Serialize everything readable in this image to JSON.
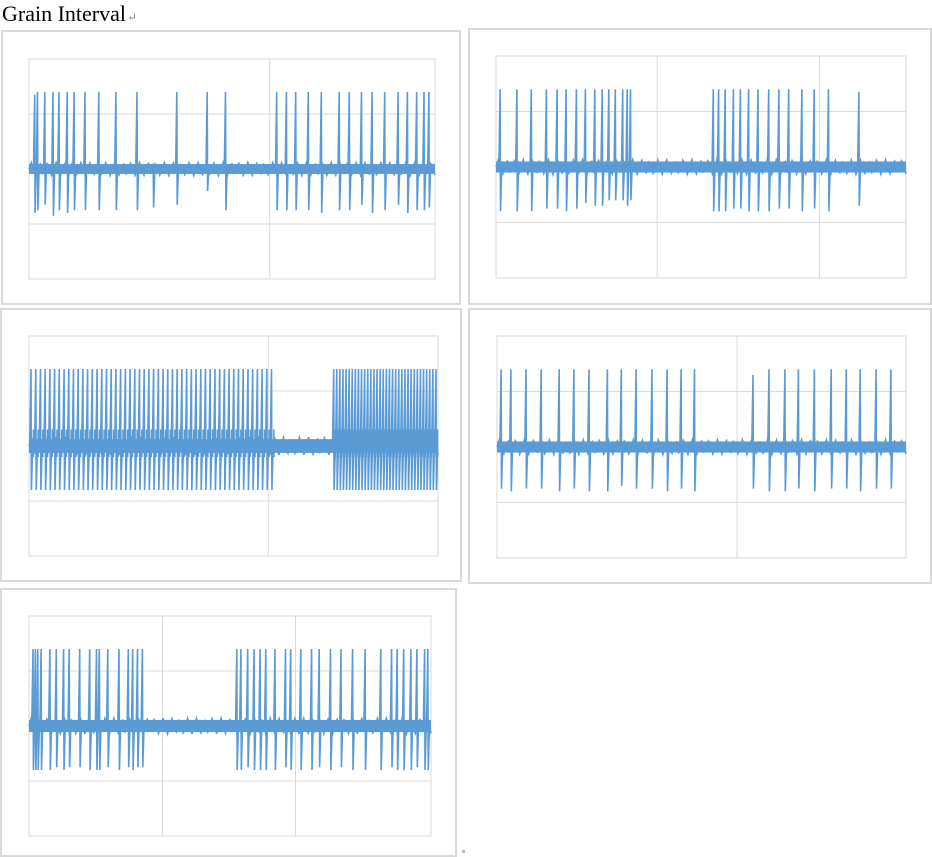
{
  "page": {
    "title": "Grain Interval",
    "paragraph_mark": "↵"
  },
  "style": {
    "series_color": "#5b9bd5",
    "grid_color": "#d9d9d9"
  },
  "chart_data": [
    {
      "type": "line",
      "grid": true,
      "x_range": [
        0,
        100
      ],
      "y_range": [
        -4,
        4
      ],
      "x_gridlines": [
        0,
        59.3,
        100
      ],
      "y_gridlines": [
        -4,
        -2,
        0,
        2,
        4
      ],
      "baseline_amplitude": 0.18,
      "series": [
        {
          "pulses": [
            {
              "x": 1.4,
              "top": 2.7,
              "bottom": -1.6
            },
            {
              "x": 2.1,
              "top": 2.8,
              "bottom": -1.5
            },
            {
              "x": 3.9,
              "top": 2.8,
              "bottom": -1.3
            },
            {
              "x": 5.9,
              "top": 2.8,
              "bottom": -1.7
            },
            {
              "x": 7.4,
              "top": 2.8,
              "bottom": -1.5
            },
            {
              "x": 9.4,
              "top": 2.8,
              "bottom": -1.6
            },
            {
              "x": 11.1,
              "top": 2.8,
              "bottom": -1.5
            },
            {
              "x": 13.8,
              "top": 2.8,
              "bottom": -1.5
            },
            {
              "x": 17.2,
              "top": 2.8,
              "bottom": -1.5
            },
            {
              "x": 21.4,
              "top": 2.8,
              "bottom": -1.5
            },
            {
              "x": 26.6,
              "top": 2.8,
              "bottom": -1.5
            },
            {
              "x": 30.6,
              "top": 0.2,
              "bottom": -1.4
            },
            {
              "x": 36.4,
              "top": 2.8,
              "bottom": -1.3
            },
            {
              "x": 43.9,
              "top": 2.8,
              "bottom": -0.8
            },
            {
              "x": 48.4,
              "top": 2.8,
              "bottom": -1.5
            },
            {
              "x": 61.0,
              "top": 2.8,
              "bottom": -1.5
            },
            {
              "x": 63.4,
              "top": 2.8,
              "bottom": -1.5
            },
            {
              "x": 65.7,
              "top": 2.8,
              "bottom": -1.5
            },
            {
              "x": 68.8,
              "top": 2.8,
              "bottom": -1.5
            },
            {
              "x": 72.0,
              "top": 2.8,
              "bottom": -1.6
            },
            {
              "x": 76.4,
              "top": 2.8,
              "bottom": -1.5
            },
            {
              "x": 78.9,
              "top": 2.8,
              "bottom": -1.5
            },
            {
              "x": 81.9,
              "top": 2.8,
              "bottom": -1.3
            },
            {
              "x": 84.5,
              "top": 2.8,
              "bottom": -1.6
            },
            {
              "x": 87.6,
              "top": 2.8,
              "bottom": -1.5
            },
            {
              "x": 90.9,
              "top": 2.8,
              "bottom": -1.3
            },
            {
              "x": 93.2,
              "top": 2.8,
              "bottom": -1.6
            },
            {
              "x": 95.5,
              "top": 2.8,
              "bottom": -1.5
            },
            {
              "x": 97.3,
              "top": 2.8,
              "bottom": -1.5
            },
            {
              "x": 98.5,
              "top": 2.8,
              "bottom": -1.4
            }
          ]
        }
      ]
    },
    {
      "type": "line",
      "grid": true,
      "x_range": [
        0,
        100
      ],
      "y_range": [
        -4,
        4
      ],
      "x_gridlines": [
        0,
        39.3,
        78.9,
        100
      ],
      "y_gridlines": [
        -4,
        -2,
        0,
        2,
        4
      ],
      "baseline_amplitude": 0.2,
      "series": [
        {
          "pulses": [
            {
              "x": 1.0,
              "top": 2.8,
              "bottom": -1.6
            },
            {
              "x": 5.1,
              "top": 2.8,
              "bottom": -1.6
            },
            {
              "x": 8.6,
              "top": 2.8,
              "bottom": -1.6
            },
            {
              "x": 12.3,
              "top": 2.8,
              "bottom": -1.5
            },
            {
              "x": 14.9,
              "top": 2.8,
              "bottom": -1.5
            },
            {
              "x": 17.1,
              "top": 2.8,
              "bottom": -1.6
            },
            {
              "x": 19.6,
              "top": 2.8,
              "bottom": -1.5
            },
            {
              "x": 21.8,
              "top": 2.8,
              "bottom": -1.3
            },
            {
              "x": 24.1,
              "top": 2.8,
              "bottom": -1.4
            },
            {
              "x": 25.9,
              "top": 2.8,
              "bottom": -1.4
            },
            {
              "x": 27.5,
              "top": 2.8,
              "bottom": -1.2
            },
            {
              "x": 29.1,
              "top": 2.8,
              "bottom": -1.2
            },
            {
              "x": 30.9,
              "top": 2.8,
              "bottom": -1.2
            },
            {
              "x": 32.0,
              "top": 2.8,
              "bottom": -1.4
            },
            {
              "x": 32.8,
              "top": 2.8,
              "bottom": -1.2
            },
            {
              "x": 53.0,
              "top": 2.8,
              "bottom": -1.6
            },
            {
              "x": 54.3,
              "top": 2.8,
              "bottom": -1.6
            },
            {
              "x": 55.9,
              "top": 2.8,
              "bottom": -1.6
            },
            {
              "x": 57.9,
              "top": 2.8,
              "bottom": -1.5
            },
            {
              "x": 59.6,
              "top": 2.8,
              "bottom": -1.5
            },
            {
              "x": 61.6,
              "top": 2.8,
              "bottom": -1.6
            },
            {
              "x": 63.9,
              "top": 2.8,
              "bottom": -1.6
            },
            {
              "x": 66.5,
              "top": 2.8,
              "bottom": -1.6
            },
            {
              "x": 69.0,
              "top": 2.8,
              "bottom": -1.5
            },
            {
              "x": 71.4,
              "top": 2.8,
              "bottom": -1.5
            },
            {
              "x": 74.6,
              "top": 2.8,
              "bottom": -1.6
            },
            {
              "x": 77.6,
              "top": 2.8,
              "bottom": -1.5
            },
            {
              "x": 81.1,
              "top": 2.8,
              "bottom": -1.6
            },
            {
              "x": 88.5,
              "top": 2.7,
              "bottom": -1.4
            }
          ]
        }
      ]
    },
    {
      "type": "line",
      "grid": true,
      "x_range": [
        0,
        100
      ],
      "y_range": [
        -4,
        4
      ],
      "x_gridlines": [
        0,
        58.5,
        100
      ],
      "y_gridlines": [
        -4,
        -2,
        0,
        2,
        4
      ],
      "baseline_amplitude": 0.25,
      "series": [
        {
          "dense_bursts": [
            {
              "from": 0.5,
              "to": 59.3,
              "count": 52,
              "top": 2.8,
              "bottom": -1.6,
              "mid_top": 0.6,
              "mid_bottom": -0.4
            },
            {
              "from": 74.5,
              "to": 99.5,
              "count": 34,
              "top": 2.8,
              "bottom": -1.6,
              "mid_top": 0.6,
              "mid_bottom": -0.4
            }
          ],
          "quiet_segment": {
            "from": 59.3,
            "to": 74.5,
            "amplitude": 0.14
          }
        }
      ]
    },
    {
      "type": "line",
      "grid": true,
      "x_range": [
        0,
        100
      ],
      "y_range": [
        -4,
        4
      ],
      "x_gridlines": [
        0,
        58.7,
        100
      ],
      "y_gridlines": [
        -4,
        -2,
        0,
        2,
        4
      ],
      "baseline_amplitude": 0.2,
      "series": [
        {
          "pulses": [
            {
              "x": 1.0,
              "top": 2.8,
              "bottom": -1.5
            },
            {
              "x": 3.4,
              "top": 2.8,
              "bottom": -1.6
            },
            {
              "x": 7.1,
              "top": 2.8,
              "bottom": -1.5
            },
            {
              "x": 10.8,
              "top": 2.8,
              "bottom": -1.5
            },
            {
              "x": 15.2,
              "top": 2.8,
              "bottom": -1.6
            },
            {
              "x": 18.8,
              "top": 2.8,
              "bottom": -1.5
            },
            {
              "x": 22.5,
              "top": 2.8,
              "bottom": -1.6
            },
            {
              "x": 27.0,
              "top": 2.8,
              "bottom": -1.6
            },
            {
              "x": 30.4,
              "top": 2.8,
              "bottom": -1.4
            },
            {
              "x": 34.0,
              "top": 2.8,
              "bottom": -1.5
            },
            {
              "x": 37.9,
              "top": 2.8,
              "bottom": -1.5
            },
            {
              "x": 41.6,
              "top": 2.8,
              "bottom": -1.6
            },
            {
              "x": 45.0,
              "top": 2.8,
              "bottom": -1.5
            },
            {
              "x": 48.3,
              "top": 2.8,
              "bottom": -1.6
            },
            {
              "x": 62.6,
              "top": 2.6,
              "bottom": -1.5
            },
            {
              "x": 66.5,
              "top": 2.8,
              "bottom": -1.6
            },
            {
              "x": 70.4,
              "top": 2.8,
              "bottom": -1.6
            },
            {
              "x": 73.7,
              "top": 2.8,
              "bottom": -1.5
            },
            {
              "x": 77.6,
              "top": 2.8,
              "bottom": -1.6
            },
            {
              "x": 81.7,
              "top": 2.8,
              "bottom": -1.5
            },
            {
              "x": 85.4,
              "top": 2.8,
              "bottom": -1.5
            },
            {
              "x": 88.8,
              "top": 2.8,
              "bottom": -1.6
            },
            {
              "x": 92.7,
              "top": 2.8,
              "bottom": -1.5
            },
            {
              "x": 96.3,
              "top": 2.8,
              "bottom": -1.5
            }
          ]
        }
      ]
    },
    {
      "type": "line",
      "grid": true,
      "x_range": [
        0,
        100
      ],
      "y_range": [
        -4,
        4
      ],
      "x_gridlines": [
        0,
        33.2,
        66.3,
        100
      ],
      "y_gridlines": [
        -4,
        -2,
        0,
        2,
        4
      ],
      "baseline_amplitude": 0.22,
      "series": [
        {
          "pulses": [
            {
              "x": 1.0,
              "top": 2.8,
              "bottom": -1.6
            },
            {
              "x": 1.6,
              "top": 2.8,
              "bottom": -1.6
            },
            {
              "x": 2.2,
              "top": 2.8,
              "bottom": -1.6
            },
            {
              "x": 3.0,
              "top": 2.8,
              "bottom": -1.6
            },
            {
              "x": 5.2,
              "top": 2.8,
              "bottom": -1.6
            },
            {
              "x": 6.8,
              "top": 2.8,
              "bottom": -1.5
            },
            {
              "x": 8.6,
              "top": 2.8,
              "bottom": -1.6
            },
            {
              "x": 10.0,
              "top": 2.8,
              "bottom": -1.5
            },
            {
              "x": 12.6,
              "top": 2.8,
              "bottom": -1.5
            },
            {
              "x": 15.1,
              "top": 2.8,
              "bottom": -1.6
            },
            {
              "x": 16.8,
              "top": 2.8,
              "bottom": -1.6
            },
            {
              "x": 17.5,
              "top": 2.8,
              "bottom": -1.6
            },
            {
              "x": 19.6,
              "top": 2.8,
              "bottom": -1.5
            },
            {
              "x": 22.4,
              "top": 2.8,
              "bottom": -1.6
            },
            {
              "x": 24.7,
              "top": 2.8,
              "bottom": -1.5
            },
            {
              "x": 25.8,
              "top": 2.8,
              "bottom": -1.6
            },
            {
              "x": 27.0,
              "top": 2.8,
              "bottom": -1.5
            },
            {
              "x": 28.2,
              "top": 2.8,
              "bottom": -1.5
            },
            {
              "x": 51.7,
              "top": 2.8,
              "bottom": -1.6
            },
            {
              "x": 52.7,
              "top": 2.8,
              "bottom": -1.6
            },
            {
              "x": 54.4,
              "top": 2.8,
              "bottom": -1.5
            },
            {
              "x": 56.0,
              "top": 2.8,
              "bottom": -1.6
            },
            {
              "x": 57.5,
              "top": 2.8,
              "bottom": -1.6
            },
            {
              "x": 58.9,
              "top": 2.8,
              "bottom": -1.6
            },
            {
              "x": 61.2,
              "top": 2.8,
              "bottom": -1.6
            },
            {
              "x": 63.8,
              "top": 2.8,
              "bottom": -1.5
            },
            {
              "x": 65.1,
              "top": 2.8,
              "bottom": -1.6
            },
            {
              "x": 67.6,
              "top": 2.8,
              "bottom": -1.6
            },
            {
              "x": 70.3,
              "top": 2.8,
              "bottom": -1.6
            },
            {
              "x": 72.2,
              "top": 2.8,
              "bottom": -1.5
            },
            {
              "x": 75.0,
              "top": 2.8,
              "bottom": -1.6
            },
            {
              "x": 77.6,
              "top": 2.8,
              "bottom": -1.5
            },
            {
              "x": 80.5,
              "top": 2.8,
              "bottom": -1.6
            },
            {
              "x": 83.6,
              "top": 2.8,
              "bottom": -1.6
            },
            {
              "x": 87.5,
              "top": 2.8,
              "bottom": -1.6
            },
            {
              "x": 90.2,
              "top": 2.8,
              "bottom": -1.5
            },
            {
              "x": 91.6,
              "top": 2.8,
              "bottom": -1.6
            },
            {
              "x": 93.2,
              "top": 2.8,
              "bottom": -1.6
            },
            {
              "x": 95.0,
              "top": 2.8,
              "bottom": -1.6
            },
            {
              "x": 96.5,
              "top": 2.8,
              "bottom": -1.5
            },
            {
              "x": 98.4,
              "top": 2.8,
              "bottom": -1.6
            },
            {
              "x": 99.2,
              "top": 2.8,
              "bottom": -1.6
            }
          ]
        }
      ]
    }
  ]
}
